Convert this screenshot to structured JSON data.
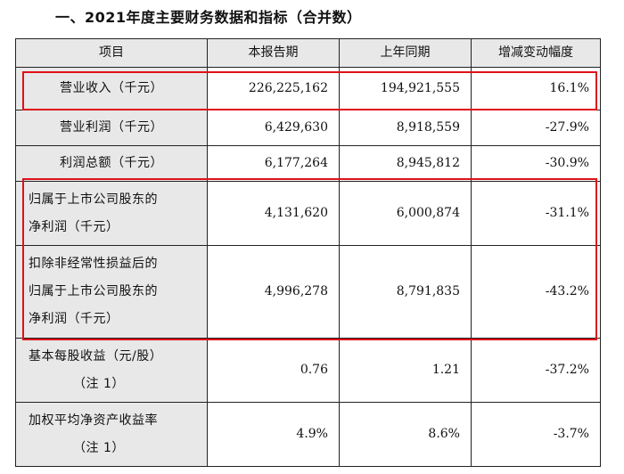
{
  "heading": "一、2021年度主要财务数据和指标（合并数）",
  "table": {
    "headers": [
      "项目",
      "本报告期",
      "上年同期",
      "增减变动幅度"
    ],
    "rows": [
      {
        "item": "营业收入（千元）",
        "current": "226,225,162",
        "previous": "194,921,555",
        "change": "16.1%"
      },
      {
        "item": "营业利润（千元）",
        "current": "6,429,630",
        "previous": "8,918,559",
        "change": "-27.9%"
      },
      {
        "item": "利润总额（千元）",
        "current": "6,177,264",
        "previous": "8,945,812",
        "change": "-30.9%"
      },
      {
        "item_lines": [
          "归属于上市公司股东的",
          "净利润（千元）"
        ],
        "current": "4,131,620",
        "previous": "6,000,874",
        "change": "-31.1%"
      },
      {
        "item_lines": [
          "扣除非经常性损益后的",
          "归属于上市公司股东的",
          "净利润（千元）"
        ],
        "current": "4,996,278",
        "previous": "8,791,835",
        "change": "-43.2%"
      },
      {
        "item_lines": [
          "基本每股收益（元/股）",
          "（注 1）"
        ],
        "current": "0.76",
        "previous": "1.21",
        "change": "-37.2%"
      },
      {
        "item_lines": [
          "加权平均净资产收益率",
          "（注 1）"
        ],
        "current": "4.9%",
        "previous": "8.6%",
        "change": "-3.7%"
      }
    ]
  },
  "highlight_color": "#e0101a"
}
